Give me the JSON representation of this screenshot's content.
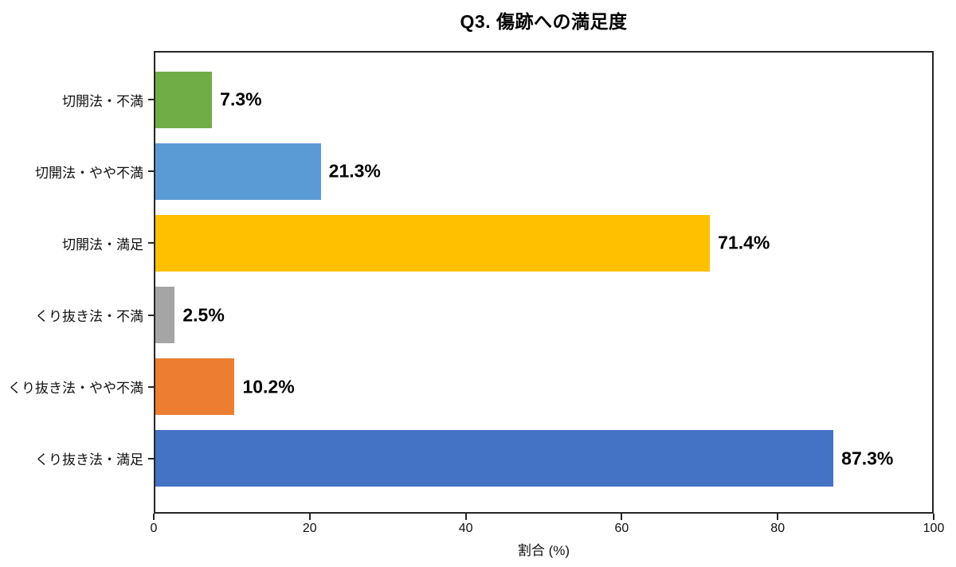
{
  "chart_data": {
    "type": "bar",
    "orientation": "horizontal",
    "title": "Q3. 傷跡への満足度",
    "xlabel": "割合 (%)",
    "ylabel": "",
    "categories": [
      "切開法・不満",
      "切開法・やや不満",
      "切開法・満足",
      "くり抜き法・不満",
      "くり抜き法・やや不満",
      "くり抜き法・満足"
    ],
    "values": [
      7.3,
      21.3,
      71.4,
      2.5,
      10.2,
      87.3
    ],
    "value_labels": [
      "7.3%",
      "21.3%",
      "71.4%",
      "2.5%",
      "10.2%",
      "87.3%"
    ],
    "bar_colors": [
      "#70AD47",
      "#5B9BD5",
      "#FFC000",
      "#A5A5A5",
      "#ED7D31",
      "#4472C4"
    ],
    "xlim": [
      0,
      100
    ],
    "xticks": [
      0,
      20,
      40,
      60,
      80,
      100
    ],
    "grid": false,
    "legend": null,
    "axis_color": "#262626",
    "text_color": "#000000"
  }
}
